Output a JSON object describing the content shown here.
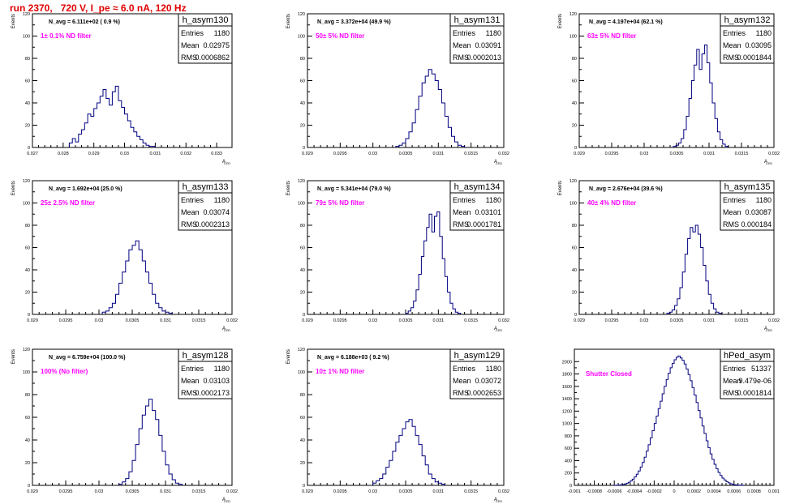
{
  "page_title": "run 2370,   720 V, I_pe ≈ 6.0 nA, 120 Hz",
  "colors": {
    "title": "#e00000",
    "annotation": "#ff00ff",
    "histogram": "#000080",
    "axis": "#000000"
  },
  "chart_data": [
    {
      "type": "histogram",
      "name": "h_asym130",
      "navg": "N_avg = 6.111e+02 ( 0.9 %)",
      "filter": "1± 0.1% ND filter",
      "stats": {
        "Entries": "1180",
        "Mean": "0.02975",
        "RMS": "0.0006862"
      },
      "xlim": [
        0.027,
        0.0335
      ],
      "ylim": [
        0,
        120
      ],
      "xticks": [
        "0.027",
        "0.028",
        "0.029",
        "0.03",
        "0.031",
        "0.032",
        "0.033"
      ],
      "xtick_values": [
        0.027,
        0.028,
        0.029,
        0.03,
        0.031,
        0.032,
        0.033
      ],
      "yticks": [
        0,
        20,
        40,
        60,
        80,
        100,
        120
      ],
      "xlabel": "A",
      "xlabel_sub": "LED",
      "ylabel": "Events",
      "bins": {
        "start": 0.0282,
        "width": 0.0001,
        "counts": [
          4,
          8,
          5,
          12,
          16,
          22,
          30,
          28,
          35,
          40,
          46,
          52,
          44,
          38,
          50,
          55,
          42,
          36,
          30,
          24,
          18,
          14,
          10,
          7,
          4,
          2,
          1,
          1
        ]
      }
    },
    {
      "type": "histogram",
      "name": "h_asym131",
      "navg": "N_avg = 3.372e+04 (49.9 %)",
      "filter": "50± 5% ND filter",
      "stats": {
        "Entries": "1180",
        "Mean": "0.03091",
        "RMS": "0.0002013"
      },
      "xlim": [
        0.029,
        0.032
      ],
      "ylim": [
        0,
        120
      ],
      "xticks": [
        "0.029",
        "0.0295",
        "0.03",
        "0.0305",
        "0.031",
        "0.0315",
        "0.032"
      ],
      "xtick_values": [
        0.029,
        0.0295,
        0.03,
        0.0305,
        0.031,
        0.0315,
        0.032
      ],
      "yticks": [
        0,
        20,
        40,
        60,
        80,
        100,
        120
      ],
      "xlabel": "A",
      "xlabel_sub": "LED",
      "ylabel": "Events",
      "bins": {
        "start": 0.03035,
        "width": 5e-05,
        "counts": [
          1,
          2,
          4,
          8,
          14,
          22,
          34,
          46,
          58,
          64,
          70,
          66,
          60,
          52,
          40,
          28,
          18,
          10,
          5,
          2,
          1
        ]
      }
    },
    {
      "type": "histogram",
      "name": "h_asym132",
      "navg": "N_avg = 4.197e+04 (62.1 %)",
      "filter": "63± 5% ND filter",
      "stats": {
        "Entries": "1180",
        "Mean": "0.03095",
        "RMS": "0.0001844"
      },
      "xlim": [
        0.029,
        0.032
      ],
      "ylim": [
        0,
        120
      ],
      "xticks": [
        "0.029",
        "0.0295",
        "0.03",
        "0.0305",
        "0.031",
        "0.0315",
        "0.032"
      ],
      "xtick_values": [
        0.029,
        0.0295,
        0.03,
        0.0305,
        0.031,
        0.0315,
        0.032
      ],
      "yticks": [
        0,
        20,
        40,
        60,
        80,
        100,
        120
      ],
      "xlabel": "A",
      "xlabel_sub": "LED",
      "ylabel": "Events",
      "bins": {
        "start": 0.03045,
        "width": 4e-05,
        "counts": [
          1,
          2,
          4,
          8,
          16,
          28,
          44,
          60,
          74,
          88,
          70,
          84,
          92,
          76,
          58,
          40,
          26,
          14,
          7,
          3,
          1
        ]
      }
    },
    {
      "type": "histogram",
      "name": "h_asym133",
      "navg": "N_avg = 1.692e+04 (25.0 %)",
      "filter": "25± 2.5% ND filter",
      "stats": {
        "Entries": "1180",
        "Mean": "0.03074",
        "RMS": "0.0002313"
      },
      "xlim": [
        0.029,
        0.032
      ],
      "ylim": [
        0,
        120
      ],
      "xticks": [
        "0.029",
        "0.0295",
        "0.03",
        "0.0305",
        "0.031",
        "0.0315",
        "0.032"
      ],
      "xtick_values": [
        0.029,
        0.0295,
        0.03,
        0.0305,
        0.031,
        0.0315,
        0.032
      ],
      "yticks": [
        0,
        20,
        40,
        60,
        80,
        100,
        120
      ],
      "xlabel": "A",
      "xlabel_sub": "LED",
      "ylabel": "Events",
      "bins": {
        "start": 0.03005,
        "width": 5e-05,
        "counts": [
          2,
          3,
          6,
          10,
          18,
          28,
          38,
          48,
          58,
          62,
          66,
          58,
          48,
          38,
          28,
          18,
          10,
          6,
          3,
          2,
          1
        ]
      }
    },
    {
      "type": "histogram",
      "name": "h_asym134",
      "navg": "N_avg = 5.341e+04 (79.0 %)",
      "filter": "79± 5% ND filter",
      "stats": {
        "Entries": "1180",
        "Mean": "0.03101",
        "RMS": "0.0001781"
      },
      "xlim": [
        0.029,
        0.032
      ],
      "ylim": [
        0,
        120
      ],
      "xticks": [
        "0.029",
        "0.0295",
        "0.03",
        "0.0305",
        "0.031",
        "0.0315",
        "0.032"
      ],
      "xtick_values": [
        0.029,
        0.0295,
        0.03,
        0.0305,
        0.031,
        0.0315,
        0.032
      ],
      "yticks": [
        0,
        20,
        40,
        60,
        80,
        100,
        120
      ],
      "xlabel": "A",
      "xlabel_sub": "LED",
      "ylabel": "Events",
      "bins": {
        "start": 0.0305,
        "width": 4e-05,
        "counts": [
          1,
          3,
          6,
          12,
          22,
          36,
          52,
          66,
          78,
          90,
          74,
          88,
          92,
          70,
          50,
          34,
          20,
          10,
          5,
          2,
          1
        ]
      }
    },
    {
      "type": "histogram",
      "name": "h_asym135",
      "navg": "N_avg = 2.676e+04 (39.6 %)",
      "filter": "40± 4% ND filter",
      "stats": {
        "Entries": "1180",
        "Mean": "0.03087",
        "RMS": "0.000184"
      },
      "xlim": [
        0.029,
        0.032
      ],
      "ylim": [
        0,
        120
      ],
      "xticks": [
        "0.029",
        "0.0295",
        "0.03",
        "0.0305",
        "0.031",
        "0.0315",
        "0.032"
      ],
      "xtick_values": [
        0.029,
        0.0295,
        0.03,
        0.0305,
        0.031,
        0.0315,
        0.032
      ],
      "yticks": [
        0,
        20,
        40,
        60,
        80,
        100,
        120
      ],
      "xlabel": "A",
      "xlabel_sub": "LED",
      "ylabel": "Events",
      "bins": {
        "start": 0.03035,
        "width": 4e-05,
        "counts": [
          1,
          2,
          4,
          8,
          14,
          24,
          38,
          54,
          68,
          78,
          74,
          80,
          72,
          60,
          44,
          30,
          18,
          10,
          5,
          2,
          1
        ]
      }
    },
    {
      "type": "histogram",
      "name": "h_asym128",
      "navg": "N_avg = 6.759e+04 (100.0 %)",
      "filter": "100% (No filter)",
      "stats": {
        "Entries": "1180",
        "Mean": "0.03103",
        "RMS": "0.0002173"
      },
      "xlim": [
        0.029,
        0.032
      ],
      "ylim": [
        0,
        120
      ],
      "xticks": [
        "0.029",
        "0.0295",
        "0.03",
        "0.0305",
        "0.031",
        "0.0315",
        "0.032"
      ],
      "xtick_values": [
        0.029,
        0.0295,
        0.03,
        0.0305,
        0.031,
        0.0315,
        0.032
      ],
      "yticks": [
        0,
        20,
        40,
        60,
        80,
        100,
        120
      ],
      "xlabel": "A",
      "xlabel_sub": "LED",
      "ylabel": "Events",
      "bins": {
        "start": 0.0303,
        "width": 5e-05,
        "counts": [
          1,
          3,
          6,
          12,
          22,
          36,
          50,
          62,
          70,
          76,
          66,
          58,
          44,
          30,
          18,
          10,
          5,
          2,
          1
        ]
      }
    },
    {
      "type": "histogram",
      "name": "h_asym129",
      "navg": "N_avg = 6.188e+03 ( 9.2 %)",
      "filter": "10± 1% ND filter",
      "stats": {
        "Entries": "1180",
        "Mean": "0.03072",
        "RMS": "0.0002653"
      },
      "xlim": [
        0.029,
        0.032
      ],
      "ylim": [
        0,
        120
      ],
      "xticks": [
        "0.029",
        "0.0295",
        "0.03",
        "0.0305",
        "0.031",
        "0.0315",
        "0.032"
      ],
      "xtick_values": [
        0.029,
        0.0295,
        0.03,
        0.0305,
        0.031,
        0.0315,
        0.032
      ],
      "yticks": [
        0,
        20,
        40,
        60,
        80,
        100,
        120
      ],
      "xlabel": "A",
      "xlabel_sub": "LED",
      "ylabel": "Events",
      "bins": {
        "start": 0.03,
        "width": 5e-05,
        "counts": [
          2,
          4,
          6,
          10,
          16,
          22,
          30,
          38,
          44,
          50,
          56,
          58,
          52,
          44,
          36,
          26,
          18,
          10,
          6,
          3,
          2,
          1
        ]
      }
    },
    {
      "type": "histogram",
      "name": "hPed_asym",
      "navg": "",
      "filter": "Shutter Closed",
      "stats": {
        "Entries": "51337",
        "Mean": "9.479e-06",
        "RMS": "0.0001814"
      },
      "xlim": [
        -0.001,
        0.001
      ],
      "ylim": [
        0,
        2200
      ],
      "xticks": [
        "-0.001",
        "-0.0008",
        "-0.0006",
        "-0.0004",
        "-0.0002",
        "0",
        "0.0002",
        "0.0004",
        "0.0006",
        "0.0008",
        "0.001"
      ],
      "xtick_values": [
        -0.001,
        -0.0008,
        -0.0006,
        -0.0004,
        -0.0002,
        0,
        0.0002,
        0.0004,
        0.0006,
        0.0008,
        0.001
      ],
      "yticks": [
        0,
        200,
        400,
        600,
        800,
        1000,
        1200,
        1400,
        1600,
        1800,
        2000
      ],
      "xlabel": "",
      "xlabel_sub": "",
      "ylabel": "",
      "bins": {
        "start": -0.0006,
        "width": 2e-05,
        "counts": [
          1,
          2,
          4,
          8,
          14,
          22,
          34,
          50,
          72,
          100,
          136,
          180,
          232,
          296,
          370,
          456,
          552,
          656,
          768,
          884,
          1000,
          1120,
          1240,
          1360,
          1480,
          1600,
          1710,
          1810,
          1900,
          1970,
          2030,
          2070,
          2090,
          2060,
          2020,
          1960,
          1880,
          1790,
          1690,
          1580,
          1460,
          1340,
          1210,
          1090,
          960,
          840,
          720,
          610,
          510,
          420,
          340,
          270,
          210,
          160,
          118,
          86,
          60,
          40,
          26,
          16,
          10,
          6,
          3,
          2,
          1
        ]
      }
    }
  ]
}
